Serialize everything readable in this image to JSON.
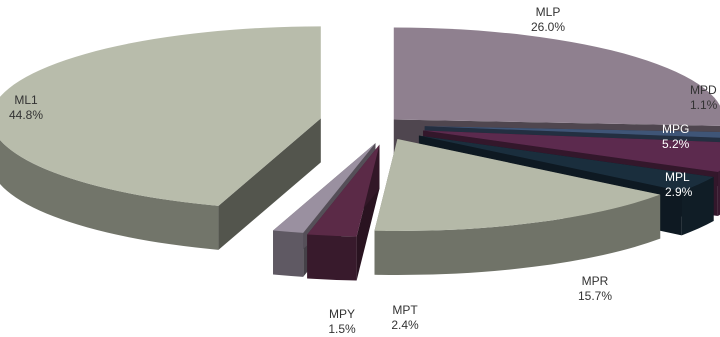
{
  "chart_data": {
    "type": "pie",
    "title": "",
    "style": "3d-exploded",
    "slices": [
      {
        "name": "MLP",
        "value": 26.0,
        "label": "26.0%",
        "color": "#8f808f"
      },
      {
        "name": "MPD",
        "value": 1.1,
        "label": "1.1%",
        "color": "#3f5577"
      },
      {
        "name": "MPG",
        "value": 5.2,
        "label": "5.2%",
        "color": "#5c2a4e"
      },
      {
        "name": "MPL",
        "value": 2.9,
        "label": "2.9%",
        "color": "#1a2e3d"
      },
      {
        "name": "MPR",
        "value": 15.7,
        "label": "15.7%",
        "color": "#b5b9a8"
      },
      {
        "name": "MPT",
        "value": 2.4,
        "label": "2.4%",
        "color": "#5b2a47"
      },
      {
        "name": "MPY",
        "value": 1.5,
        "label": "1.5%",
        "color": "#9a90a0"
      },
      {
        "name": "ML1",
        "value": 44.8,
        "label": "44.8%",
        "color": "#b8bcab"
      }
    ]
  }
}
